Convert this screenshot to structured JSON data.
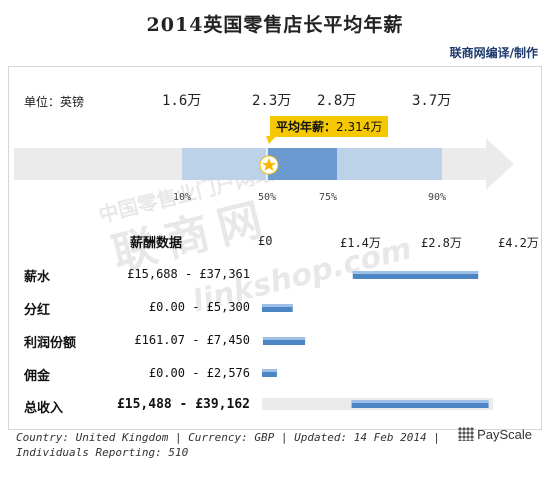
{
  "title": "2014英国零售店长平均年薪",
  "credit": "联商网编译/制作",
  "unit_label": "单位：英镑",
  "quantiles": [
    "1.6万",
    "2.3万",
    "2.8万",
    "3.7万"
  ],
  "percentile_labels": [
    "10%",
    "50%",
    "75%",
    "90%"
  ],
  "avg_label": "平均年薪：",
  "avg_value": "2.314万",
  "header": "薪酬数据",
  "ticks": [
    "£0",
    "£1.4万",
    "£2.8万",
    "£4.2万"
  ],
  "rows": [
    {
      "label": "薪水",
      "range": "£15,688 - £37,361"
    },
    {
      "label": "分红",
      "range": "£0.00 - £5,300"
    },
    {
      "label": "利润份额",
      "range": "£161.07 - £7,450"
    },
    {
      "label": "佣金",
      "range": "£0.00 - £2,576"
    },
    {
      "label": "总收入",
      "range": "£15,488 - £39,162"
    }
  ],
  "footer_line1": "Country: United Kingdom | Currency: GBP | Updated: 14 Feb 2014 |",
  "footer_line2": "Individuals Reporting: 510",
  "logo": "PayScale",
  "watermark": {
    "text1": "中国零售业门户网站",
    "text2": "联商网",
    "text3": "linkshop.com"
  },
  "colors": {
    "bar_light": "#bcd2e8",
    "bar_dark": "#6a9ad0",
    "bar_strip": "#4c84c4",
    "track": "#ebebeb",
    "callout": "#f5c800"
  },
  "chart_data": {
    "percentile_bar": {
      "percentiles": [
        "10%",
        "50%",
        "75%",
        "90%"
      ],
      "values": [
        16000,
        23000,
        28000,
        37000
      ],
      "average": 23140
    },
    "range_chart": {
      "type": "bar",
      "categories": [
        "薪水",
        "分红",
        "利润份额",
        "佣金",
        "总收入"
      ],
      "low": [
        15688,
        0,
        161.07,
        0,
        15488
      ],
      "high": [
        37361,
        5300,
        7450,
        2576,
        39162
      ],
      "xlim": [
        0,
        42000
      ],
      "xticks": [
        "£0",
        "£1.4万",
        "£2.8万",
        "£4.2万"
      ]
    }
  }
}
